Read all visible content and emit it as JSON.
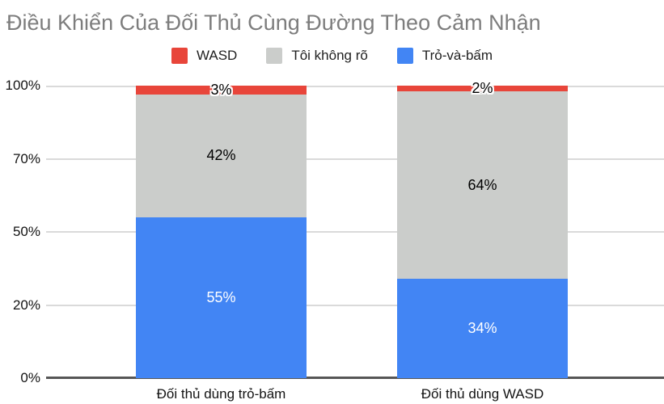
{
  "title": "Điều Khiển Của Đối Thủ Cùng Đường Theo Cảm Nhận",
  "legend": {
    "items": [
      {
        "key": "wasd",
        "label": "WASD",
        "color": "#E8453A"
      },
      {
        "key": "toi-khong-ro",
        "label": "Tôi không rõ",
        "color": "#CBCDCB"
      },
      {
        "key": "tro-va-bam",
        "label": "Trỏ-và-bấm",
        "color": "#4285F4"
      }
    ]
  },
  "chart_data": {
    "type": "bar",
    "stacked": true,
    "title": "Điều Khiển Của Đối Thủ Cùng Đường Theo Cảm Nhận",
    "categories": [
      "Đối thủ dùng trỏ-bấm",
      "Đối thủ dùng WASD"
    ],
    "series": [
      {
        "key": "tro-va-bam",
        "name": "Trỏ-và-bấm",
        "color": "#4285F4",
        "values": [
          55,
          34
        ],
        "label_color": "#ffffff",
        "label_outline": false
      },
      {
        "key": "toi-khong-ro",
        "name": "Tôi không rõ",
        "color": "#CBCDCB",
        "values": [
          42,
          64
        ],
        "label_color": "#000000",
        "label_outline": false
      },
      {
        "key": "wasd",
        "name": "WASD",
        "color": "#E8453A",
        "values": [
          3,
          2
        ],
        "label_color": "#000000",
        "label_outline": true
      }
    ],
    "value_suffix": "%",
    "yticks": [
      "100%",
      "70%",
      "50%",
      "20%",
      "0%"
    ],
    "ytick_values": [
      100,
      70,
      50,
      20,
      0
    ],
    "ylim": [
      0,
      100
    ],
    "xlabel": "",
    "ylabel": "",
    "grid": true,
    "grid_color": "#DADADA",
    "axis_color": "#565656",
    "title_color": "#7D7D7D",
    "legend_position": "top"
  }
}
